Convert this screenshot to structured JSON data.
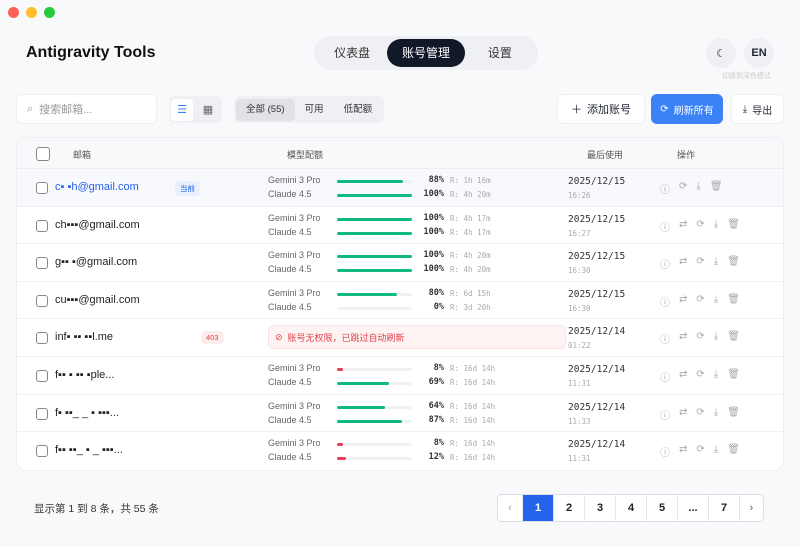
{
  "window": {
    "lights": [
      "#fe5f57",
      "#febc2e",
      "#28c840"
    ]
  },
  "app": {
    "title": "Antigravity Tools"
  },
  "nav": {
    "tabs": [
      {
        "label": "仪表盘"
      },
      {
        "label": "账号管理",
        "active": true
      },
      {
        "label": "设置"
      }
    ]
  },
  "header": {
    "theme_icon": "moon-icon",
    "lang_label": "EN",
    "tooltip": "切换到深色模式"
  },
  "toolbar": {
    "search_placeholder": "搜索邮箱...",
    "filters": [
      "全部 (55)",
      "可用",
      "低配额"
    ],
    "add_label": "添加账号",
    "refresh_label": "刷新所有",
    "export_label": "导出"
  },
  "table": {
    "headers": {
      "email": "邮箱",
      "quota": "模型配额",
      "last_used": "最后使用",
      "actions": "操作"
    },
    "rows": [
      {
        "email": "c▪ ▪h@gmail.com",
        "badge": "当前",
        "current": true,
        "models": [
          {
            "name": "Gemini 3 Pro",
            "pct": 88,
            "pct_label": "88%",
            "reset": "R: 1h 16m"
          },
          {
            "name": "Claude 4.5",
            "pct": 100,
            "pct_label": "100%",
            "reset": "R: 4h 20m"
          }
        ],
        "date": "2025/12/15",
        "time": "16:26"
      },
      {
        "email": "ch▪▪▪@gmail.com",
        "models": [
          {
            "name": "Gemini 3 Pro",
            "pct": 100,
            "pct_label": "100%",
            "reset": "R: 4h 17m"
          },
          {
            "name": "Claude 4.5",
            "pct": 100,
            "pct_label": "100%",
            "reset": "R: 4h 17m"
          }
        ],
        "date": "2025/12/15",
        "time": "16:27"
      },
      {
        "email": "g▪▪ ▪@gmail.com",
        "models": [
          {
            "name": "Gemini 3 Pro",
            "pct": 100,
            "pct_label": "100%",
            "reset": "R: 4h 20m"
          },
          {
            "name": "Claude 4.5",
            "pct": 100,
            "pct_label": "100%",
            "reset": "R: 4h 20m"
          }
        ],
        "date": "2025/12/15",
        "time": "16:30"
      },
      {
        "email": "cu▪▪▪@gmail.com",
        "models": [
          {
            "name": "Gemini 3 Pro",
            "pct": 80,
            "pct_label": "80%",
            "reset": "R: 6d 15h"
          },
          {
            "name": "Claude 4.5",
            "pct": 0,
            "pct_label": "0%",
            "reset": "R: 3d 20h"
          }
        ],
        "date": "2025/12/15",
        "time": "16:30"
      },
      {
        "email": "inf▪ ▪▪ ▪▪l.me",
        "badge": "403",
        "error": "账号无权限，已跳过自动刷新",
        "models": [],
        "date": "2025/12/14",
        "time": "01:22"
      },
      {
        "email": "f▪▪ ▪ ▪▪ ▪ple...",
        "models": [
          {
            "name": "Gemini 3 Pro",
            "pct": 8,
            "pct_label": "8%",
            "reset": "R: 16d 14h"
          },
          {
            "name": "Claude 4.5",
            "pct": 69,
            "pct_label": "69%",
            "reset": "R: 16d 14h"
          }
        ],
        "date": "2025/12/14",
        "time": "11:31"
      },
      {
        "email": "f▪ ▪▪_ _ ▪ ▪▪▪...",
        "models": [
          {
            "name": "Gemini 3 Pro",
            "pct": 64,
            "pct_label": "64%",
            "reset": "R: 16d 14h"
          },
          {
            "name": "Claude 4.5",
            "pct": 87,
            "pct_label": "87%",
            "reset": "R: 16d 14h"
          }
        ],
        "date": "2025/12/14",
        "time": "11:33"
      },
      {
        "email": "f▪▪ ▪▪_ ▪ _ ▪▪▪...",
        "models": [
          {
            "name": "Gemini 3 Pro",
            "pct": 8,
            "pct_label": "8%",
            "reset": "R: 16d 14h"
          },
          {
            "name": "Claude 4.5",
            "pct": 12,
            "pct_label": "12%",
            "reset": "R: 16d 14h"
          }
        ],
        "date": "2025/12/14",
        "time": "11:31"
      }
    ]
  },
  "colors": {
    "accent": "#2563eb",
    "good": "#10b981",
    "low": "#e63e5c",
    "error": "#e0434b"
  },
  "footer": {
    "summary": "显示第 1 到 8 条，共 55 条",
    "pages": [
      "‹",
      "1",
      "2",
      "3",
      "4",
      "5",
      "...",
      "7",
      "›"
    ],
    "current_page": "1"
  }
}
